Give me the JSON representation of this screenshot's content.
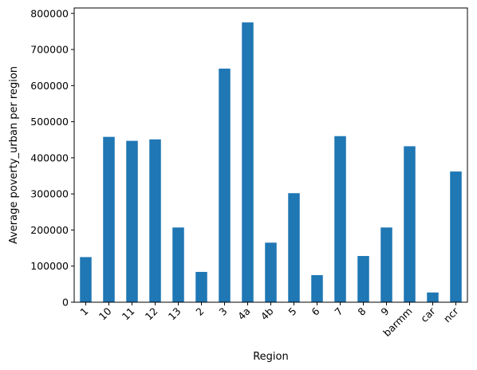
{
  "chart_data": {
    "type": "bar",
    "title": "",
    "xlabel": "Region",
    "ylabel": "Average poverty_urban per region",
    "categories": [
      "1",
      "10",
      "11",
      "12",
      "13",
      "2",
      "3",
      "4a",
      "4b",
      "5",
      "6",
      "7",
      "8",
      "9",
      "barmm",
      "car",
      "ncr"
    ],
    "values": [
      125000,
      458000,
      447000,
      451000,
      207000,
      84000,
      647000,
      775000,
      165000,
      302000,
      75000,
      460000,
      128000,
      207000,
      432000,
      27000,
      362000
    ],
    "ylim": [
      0,
      815000
    ],
    "yticks": [
      0,
      100000,
      200000,
      300000,
      400000,
      500000,
      600000,
      700000,
      800000
    ],
    "ytick_labels": [
      "0",
      "100000",
      "200000",
      "300000",
      "400000",
      "500000",
      "600000",
      "700000",
      "800000"
    ],
    "bar_color": "#1f77b4",
    "grid": false,
    "legend": "none"
  }
}
